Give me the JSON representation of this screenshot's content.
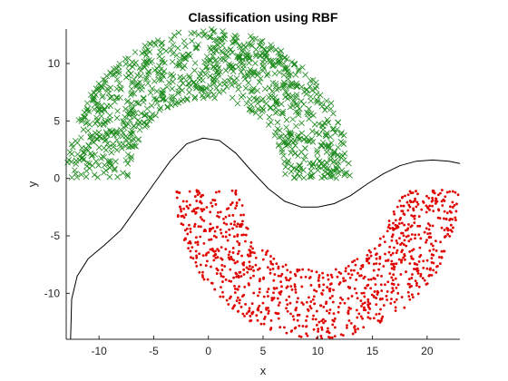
{
  "chart_data": {
    "type": "scatter",
    "title": "Classification using RBF",
    "xlabel": "x",
    "ylabel": "y",
    "xlim": [
      -13,
      23
    ],
    "ylim": [
      -14,
      13
    ],
    "xticks": [
      -10,
      -5,
      0,
      5,
      10,
      15,
      20
    ],
    "yticks": [
      -10,
      -5,
      0,
      5,
      10
    ],
    "grid": false,
    "series": [
      {
        "marker": "x",
        "color": "#1b8a1b",
        "shape": "half-moon upper",
        "center": [
          0,
          0
        ],
        "radius_range": [
          7,
          13
        ],
        "angle_range_deg": [
          0,
          180
        ],
        "count": 1000
      },
      {
        "marker": "dot",
        "color": "#e00000",
        "shape": "half-moon lower",
        "center": [
          10,
          -1
        ],
        "radius_range": [
          7,
          13
        ],
        "angle_range_deg": [
          180,
          360
        ],
        "count": 1000
      }
    ],
    "decision_boundary": {
      "color": "#000000",
      "points": [
        [
          -12.6,
          -14
        ],
        [
          -12.5,
          -10.5
        ],
        [
          -12,
          -8.5
        ],
        [
          -11,
          -7
        ],
        [
          -9.5,
          -5.8
        ],
        [
          -8,
          -4.5
        ],
        [
          -6.5,
          -2.5
        ],
        [
          -5,
          -0.5
        ],
        [
          -3.5,
          1.5
        ],
        [
          -2,
          3
        ],
        [
          -0.5,
          3.5
        ],
        [
          1,
          3.3
        ],
        [
          2.5,
          2.2
        ],
        [
          4,
          0.6
        ],
        [
          5.5,
          -0.9
        ],
        [
          7,
          -2
        ],
        [
          8.5,
          -2.5
        ],
        [
          10,
          -2.5
        ],
        [
          11.5,
          -2.2
        ],
        [
          13,
          -1.5
        ],
        [
          14.5,
          -0.5
        ],
        [
          16,
          0.4
        ],
        [
          17.5,
          1.1
        ],
        [
          19,
          1.5
        ],
        [
          20.5,
          1.6
        ],
        [
          22,
          1.5
        ],
        [
          23,
          1.3
        ]
      ]
    }
  }
}
